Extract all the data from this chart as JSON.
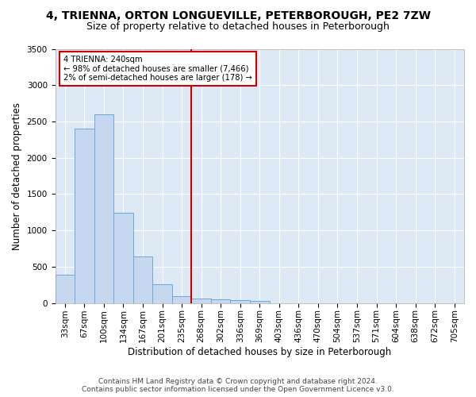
{
  "title": "4, TRIENNA, ORTON LONGUEVILLE, PETERBOROUGH, PE2 7ZW",
  "subtitle": "Size of property relative to detached houses in Peterborough",
  "xlabel": "Distribution of detached houses by size in Peterborough",
  "ylabel": "Number of detached properties",
  "footer_line1": "Contains HM Land Registry data © Crown copyright and database right 2024.",
  "footer_line2": "Contains public sector information licensed under the Open Government Licence v3.0.",
  "bar_labels": [
    "33sqm",
    "67sqm",
    "100sqm",
    "134sqm",
    "167sqm",
    "201sqm",
    "235sqm",
    "268sqm",
    "302sqm",
    "336sqm",
    "369sqm",
    "403sqm",
    "436sqm",
    "470sqm",
    "504sqm",
    "537sqm",
    "571sqm",
    "604sqm",
    "638sqm",
    "672sqm",
    "705sqm"
  ],
  "bar_values": [
    390,
    2400,
    2600,
    1240,
    640,
    260,
    100,
    60,
    55,
    40,
    30,
    0,
    0,
    0,
    0,
    0,
    0,
    0,
    0,
    0,
    0
  ],
  "bar_color": "#c5d8f0",
  "bar_edge_color": "#6aaad4",
  "vline_x": 6.5,
  "vline_color": "#cc0000",
  "annotation_text": "4 TRIENNA: 240sqm\n← 98% of detached houses are smaller (7,466)\n2% of semi-detached houses are larger (178) →",
  "annotation_box_color": "#cc0000",
  "ylim": [
    0,
    3500
  ],
  "yticks": [
    0,
    500,
    1000,
    1500,
    2000,
    2500,
    3000,
    3500
  ],
  "bg_color": "#dde8f5",
  "grid_color": "#ffffff",
  "title_fontsize": 10,
  "subtitle_fontsize": 9,
  "axis_label_fontsize": 8.5,
  "tick_fontsize": 7.5,
  "footer_fontsize": 6.5
}
